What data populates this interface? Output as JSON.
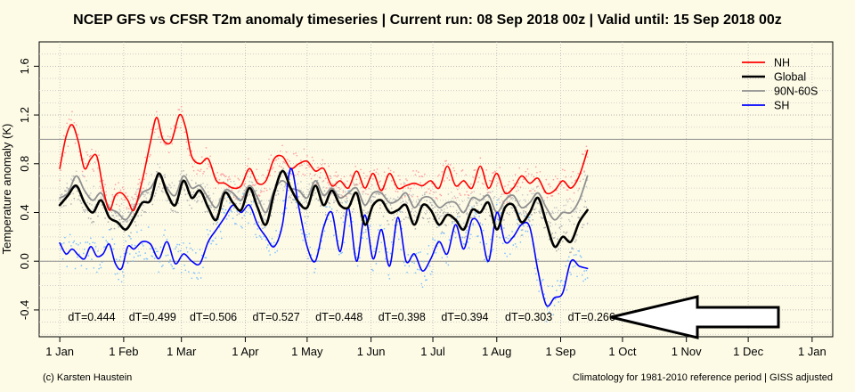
{
  "chart_data": {
    "type": "line",
    "title": "NCEP GFS vs CFSR T2m anomaly timeseries | Current run: 08 Sep 2018 00z | Valid until: 15 Sep 2018 00z",
    "ylabel": "Temperature anomaly (K)",
    "xlabel": "",
    "ylim": [
      -0.62,
      1.8
    ],
    "xlim_doy": [
      -10,
      375
    ],
    "grid": true,
    "legend_position": "top-right",
    "x_ticks": [
      {
        "label": "1 Jan",
        "doy": 0
      },
      {
        "label": "1 Feb",
        "doy": 31
      },
      {
        "label": "1 Mar",
        "doy": 59
      },
      {
        "label": "1 Apr",
        "doy": 90
      },
      {
        "label": "1 May",
        "doy": 120
      },
      {
        "label": "1 Jun",
        "doy": 151
      },
      {
        "label": "1 Jul",
        "doy": 181
      },
      {
        "label": "1 Aug",
        "doy": 212
      },
      {
        "label": "1 Sep",
        "doy": 243
      },
      {
        "label": "1 Oct",
        "doy": 273
      },
      {
        "label": "1 Nov",
        "doy": 304
      },
      {
        "label": "1 Dec",
        "doy": 334
      },
      {
        "label": "1 Jan",
        "doy": 365
      }
    ],
    "y_ticks": [
      -0.4,
      0.0,
      0.4,
      0.8,
      1.2,
      1.6
    ],
    "y_tick_labels": [
      "-0.4",
      "0.0",
      "0.4",
      "0.8",
      "1.2",
      "1.6"
    ],
    "series": [
      {
        "name": "NH",
        "color": "#ff0000",
        "dot_color": "#ffa0a0",
        "x": [
          0,
          3,
          6,
          9,
          12,
          15,
          18,
          21,
          24,
          27,
          30,
          33,
          36,
          40,
          44,
          47,
          50,
          54,
          58,
          61,
          64,
          68,
          72,
          76,
          80,
          84,
          88,
          92,
          96,
          100,
          104,
          108,
          112,
          116,
          120,
          124,
          128,
          132,
          136,
          140,
          144,
          148,
          152,
          156,
          160,
          164,
          168,
          172,
          176,
          180,
          184,
          188,
          192,
          196,
          200,
          204,
          208,
          212,
          216,
          220,
          224,
          228,
          232,
          236,
          240,
          244,
          248,
          252,
          256
        ],
        "y": [
          0.76,
          1.02,
          1.12,
          0.98,
          0.76,
          0.84,
          0.86,
          0.6,
          0.42,
          0.54,
          0.56,
          0.5,
          0.42,
          0.66,
          0.98,
          1.18,
          1.0,
          0.98,
          1.2,
          1.1,
          0.86,
          0.8,
          0.84,
          0.66,
          0.64,
          0.6,
          0.62,
          0.76,
          0.64,
          0.66,
          0.84,
          0.86,
          0.76,
          0.8,
          0.82,
          0.74,
          0.76,
          0.62,
          0.66,
          0.6,
          0.74,
          0.6,
          0.72,
          0.58,
          0.72,
          0.6,
          0.62,
          0.64,
          0.62,
          0.66,
          0.6,
          0.78,
          0.62,
          0.66,
          0.6,
          0.78,
          0.6,
          0.72,
          0.56,
          0.6,
          0.7,
          0.64,
          0.68,
          0.56,
          0.58,
          0.66,
          0.6,
          0.7,
          0.91
        ]
      },
      {
        "name": "Global",
        "color": "#000000",
        "dot_color": "#b0b0b0",
        "x": [
          0,
          4,
          8,
          12,
          16,
          20,
          24,
          28,
          32,
          36,
          40,
          44,
          48,
          52,
          56,
          60,
          64,
          68,
          72,
          76,
          80,
          84,
          88,
          92,
          96,
          100,
          104,
          108,
          112,
          116,
          120,
          124,
          128,
          132,
          136,
          140,
          144,
          148,
          152,
          156,
          160,
          164,
          168,
          172,
          176,
          180,
          184,
          188,
          192,
          196,
          200,
          204,
          208,
          212,
          216,
          220,
          224,
          228,
          232,
          236,
          240,
          244,
          248,
          252,
          256
        ],
        "y": [
          0.46,
          0.54,
          0.62,
          0.48,
          0.4,
          0.5,
          0.36,
          0.32,
          0.26,
          0.36,
          0.48,
          0.5,
          0.72,
          0.56,
          0.46,
          0.66,
          0.52,
          0.58,
          0.44,
          0.34,
          0.56,
          0.48,
          0.42,
          0.6,
          0.44,
          0.3,
          0.56,
          0.74,
          0.6,
          0.48,
          0.44,
          0.62,
          0.46,
          0.58,
          0.46,
          0.44,
          0.56,
          0.3,
          0.46,
          0.5,
          0.4,
          0.42,
          0.46,
          0.3,
          0.46,
          0.42,
          0.3,
          0.38,
          0.34,
          0.26,
          0.42,
          0.4,
          0.48,
          0.26,
          0.44,
          0.46,
          0.32,
          0.4,
          0.52,
          0.32,
          0.12,
          0.2,
          0.16,
          0.32,
          0.42
        ]
      },
      {
        "name": "90N-60S",
        "color": "#909090",
        "dot_color": "#c8c8c8",
        "x": [
          0,
          4,
          8,
          12,
          16,
          20,
          24,
          28,
          32,
          36,
          40,
          44,
          48,
          52,
          56,
          60,
          64,
          68,
          72,
          76,
          80,
          84,
          88,
          92,
          96,
          100,
          104,
          108,
          112,
          116,
          120,
          124,
          128,
          132,
          136,
          140,
          144,
          148,
          152,
          156,
          160,
          164,
          168,
          172,
          176,
          180,
          184,
          188,
          192,
          196,
          200,
          204,
          208,
          212,
          216,
          220,
          224,
          228,
          232,
          236,
          240,
          244,
          248,
          252,
          256
        ],
        "y": [
          0.52,
          0.56,
          0.7,
          0.58,
          0.5,
          0.56,
          0.44,
          0.4,
          0.34,
          0.44,
          0.56,
          0.6,
          0.7,
          0.6,
          0.54,
          0.7,
          0.6,
          0.62,
          0.52,
          0.44,
          0.58,
          0.56,
          0.5,
          0.62,
          0.52,
          0.4,
          0.58,
          0.66,
          0.6,
          0.58,
          0.52,
          0.66,
          0.54,
          0.6,
          0.52,
          0.56,
          0.6,
          0.46,
          0.56,
          0.56,
          0.48,
          0.5,
          0.56,
          0.44,
          0.52,
          0.52,
          0.44,
          0.48,
          0.48,
          0.4,
          0.52,
          0.5,
          0.54,
          0.4,
          0.5,
          0.54,
          0.44,
          0.48,
          0.56,
          0.44,
          0.34,
          0.4,
          0.4,
          0.5,
          0.7
        ]
      },
      {
        "name": "SH",
        "color": "#0000ff",
        "dot_color": "#80c0ff",
        "x": [
          0,
          3,
          6,
          9,
          12,
          15,
          18,
          21,
          24,
          27,
          30,
          33,
          36,
          40,
          44,
          48,
          52,
          56,
          60,
          64,
          68,
          72,
          76,
          80,
          84,
          88,
          92,
          96,
          100,
          104,
          108,
          112,
          116,
          120,
          124,
          128,
          132,
          136,
          140,
          144,
          148,
          152,
          156,
          160,
          164,
          168,
          172,
          176,
          180,
          184,
          188,
          192,
          196,
          200,
          204,
          208,
          212,
          216,
          220,
          224,
          228,
          232,
          236,
          240,
          244,
          248,
          252,
          256
        ],
        "y": [
          0.15,
          0.06,
          0.1,
          0.05,
          0.02,
          0.12,
          0.04,
          0.06,
          0.14,
          -0.02,
          -0.06,
          0.12,
          0.1,
          0.16,
          0.14,
          0.02,
          0.16,
          -0.02,
          0.06,
          0.0,
          -0.02,
          0.16,
          0.26,
          0.36,
          0.46,
          0.4,
          0.46,
          0.3,
          0.2,
          0.12,
          0.3,
          0.76,
          0.44,
          0.12,
          0.0,
          0.28,
          0.4,
          0.08,
          0.44,
          0.0,
          0.38,
          0.02,
          0.26,
          -0.04,
          0.36,
          0.0,
          0.06,
          -0.08,
          0.02,
          0.16,
          0.06,
          0.3,
          0.1,
          0.34,
          0.28,
          0.0,
          0.4,
          0.16,
          0.2,
          0.3,
          0.28,
          -0.08,
          -0.36,
          -0.3,
          -0.26,
          0.0,
          -0.04,
          -0.06
        ]
      }
    ],
    "annotations": [
      {
        "text": "dT=0.444",
        "x_doy": 15.5
      },
      {
        "text": "dT=0.499",
        "x_doy": 45
      },
      {
        "text": "dT=0.506",
        "x_doy": 74.5
      },
      {
        "text": "dT=0.527",
        "x_doy": 105
      },
      {
        "text": "dT=0.448",
        "x_doy": 135.5
      },
      {
        "text": "dT=0.398",
        "x_doy": 166
      },
      {
        "text": "dT=0.394",
        "x_doy": 196.5
      },
      {
        "text": "dT=0.303",
        "x_doy": 227.5
      },
      {
        "text": "dT=0.266",
        "x_doy": 258
      }
    ],
    "annotation_y": -0.46
  },
  "footer": {
    "left": "(c) Karsten Haustein",
    "right": "Climatology for 1981-2010 reference period | GISS adjusted"
  }
}
